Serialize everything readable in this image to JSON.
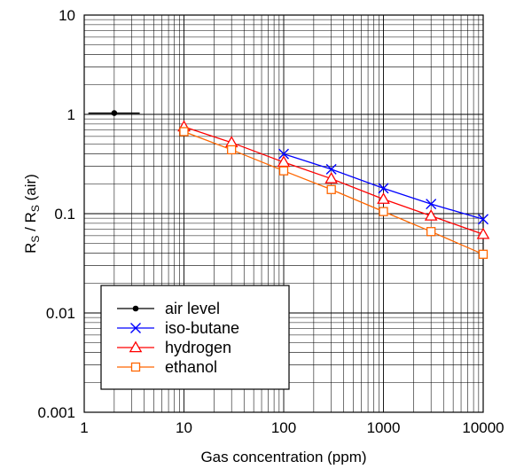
{
  "chart_data": {
    "type": "line",
    "x_scale": "log",
    "y_scale": "log",
    "xlim": [
      1,
      10000
    ],
    "ylim": [
      0.001,
      10
    ],
    "grid": true,
    "legend_position": "bottom-left",
    "xlabel": "Gas concentration (ppm)",
    "ylabel": {
      "base": "R",
      "sub1": "S",
      "mid": " / R",
      "sub2": "S",
      "tail": " (air)"
    },
    "x_ticks": [
      {
        "value": 1,
        "label": "1"
      },
      {
        "value": 10,
        "label": "10"
      },
      {
        "value": 100,
        "label": "100"
      },
      {
        "value": 1000,
        "label": "1000"
      },
      {
        "value": 10000,
        "label": "10000"
      }
    ],
    "y_ticks": [
      {
        "value": 0.001,
        "label": "0.001"
      },
      {
        "value": 0.01,
        "label": "0.01"
      },
      {
        "value": 0.1,
        "label": "0.1"
      },
      {
        "value": 1,
        "label": "1"
      },
      {
        "value": 10,
        "label": "10"
      }
    ],
    "series": [
      {
        "name": "air level",
        "color": "#000000",
        "marker": "dot",
        "points": [
          {
            "x": 2,
            "y": 1.03
          }
        ],
        "segment": [
          1.1,
          3.6
        ]
      },
      {
        "name": "iso-butane",
        "color": "#0000ff",
        "marker": "x",
        "points": [
          {
            "x": 100,
            "y": 0.4
          },
          {
            "x": 300,
            "y": 0.28
          },
          {
            "x": 1000,
            "y": 0.18
          },
          {
            "x": 3000,
            "y": 0.125
          },
          {
            "x": 10000,
            "y": 0.088
          }
        ]
      },
      {
        "name": "hydrogen",
        "color": "#ff0000",
        "marker": "triangle",
        "points": [
          {
            "x": 10,
            "y": 0.75
          },
          {
            "x": 30,
            "y": 0.52
          },
          {
            "x": 100,
            "y": 0.33
          },
          {
            "x": 300,
            "y": 0.225
          },
          {
            "x": 1000,
            "y": 0.14
          },
          {
            "x": 3000,
            "y": 0.095
          },
          {
            "x": 10000,
            "y": 0.062
          }
        ]
      },
      {
        "name": "ethanol",
        "color": "#ff6600",
        "marker": "square",
        "points": [
          {
            "x": 10,
            "y": 0.67
          },
          {
            "x": 30,
            "y": 0.44
          },
          {
            "x": 100,
            "y": 0.27
          },
          {
            "x": 300,
            "y": 0.175
          },
          {
            "x": 1000,
            "y": 0.105
          },
          {
            "x": 3000,
            "y": 0.066
          },
          {
            "x": 10000,
            "y": 0.039
          }
        ]
      }
    ]
  }
}
